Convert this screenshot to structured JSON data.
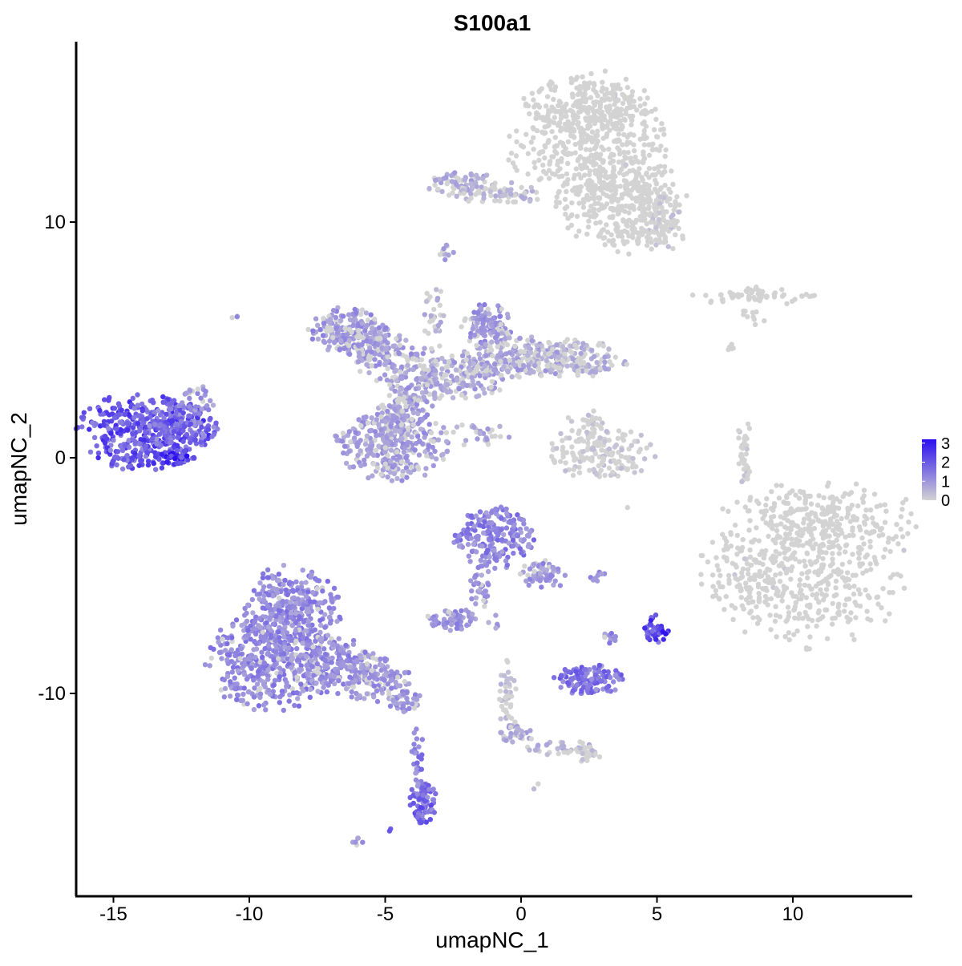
{
  "chart_data": {
    "type": "scatter",
    "title": "S100a1",
    "xlabel": "umapNC_1",
    "ylabel": "umapNC_2",
    "xlim": [
      -16.5,
      14.5
    ],
    "ylim": [
      -18.5,
      17.5
    ],
    "x_ticks": [
      -15,
      -10,
      -5,
      0,
      5,
      10
    ],
    "x_tick_labels": [
      "-15",
      "-10",
      "-5",
      "0",
      "5",
      "10"
    ],
    "y_ticks": [
      -10,
      0,
      10
    ],
    "y_tick_labels": [
      "-10",
      "0",
      "10"
    ],
    "grid": false,
    "legend_position": "right",
    "color_scale": {
      "low": "#d3d3d3",
      "high": "#2b0ff0",
      "min": 0,
      "max": 3.2,
      "labels": [
        "3",
        "2",
        "1",
        "0"
      ],
      "values": [
        3,
        2,
        1,
        0
      ]
    },
    "clusters": [
      {
        "cx": 2.4,
        "cy": 15.0,
        "rx": 1.4,
        "ry": 0.9,
        "n": 220,
        "expr": 0.05
      },
      {
        "cx": 2.6,
        "cy": 13.0,
        "rx": 1.9,
        "ry": 1.6,
        "n": 400,
        "expr": 0.05
      },
      {
        "cx": 3.2,
        "cy": 11.0,
        "rx": 1.2,
        "ry": 1.2,
        "n": 180,
        "expr": 0.05
      },
      {
        "cx": 4.5,
        "cy": 11.0,
        "rx": 1.0,
        "ry": 0.6,
        "n": 90,
        "expr": 0.1
      },
      {
        "cx": 5.2,
        "cy": 10.0,
        "rx": 0.5,
        "ry": 0.7,
        "n": 60,
        "expr": 0.3
      },
      {
        "cx": 4.3,
        "cy": 9.4,
        "rx": 1.0,
        "ry": 0.5,
        "n": 70,
        "expr": 0.1
      },
      {
        "cx": -2.2,
        "cy": 11.6,
        "rx": 0.8,
        "ry": 0.35,
        "n": 70,
        "expr": 0.7
      },
      {
        "cx": -0.8,
        "cy": 11.2,
        "rx": 1.0,
        "ry": 0.3,
        "n": 60,
        "expr": 0.5
      },
      {
        "cx": -2.8,
        "cy": 8.8,
        "rx": 0.2,
        "ry": 0.25,
        "n": 10,
        "expr": 0.8
      },
      {
        "cx": 8.5,
        "cy": 6.9,
        "rx": 1.6,
        "ry": 0.25,
        "n": 60,
        "expr": 0.1
      },
      {
        "cx": 8.5,
        "cy": 6.0,
        "rx": 0.3,
        "ry": 0.3,
        "n": 10,
        "expr": 0.1
      },
      {
        "cx": 7.7,
        "cy": 4.7,
        "rx": 0.15,
        "ry": 0.2,
        "n": 5,
        "expr": 0.1
      },
      {
        "cx": -6.5,
        "cy": 5.4,
        "rx": 0.8,
        "ry": 0.6,
        "n": 160,
        "expr": 1.0
      },
      {
        "cx": -5.6,
        "cy": 4.8,
        "rx": 0.8,
        "ry": 0.6,
        "n": 110,
        "expr": 0.9
      },
      {
        "cx": -4.5,
        "cy": 4.0,
        "rx": 0.9,
        "ry": 0.6,
        "n": 100,
        "expr": 0.9
      },
      {
        "cx": -1.2,
        "cy": 5.6,
        "rx": 0.6,
        "ry": 0.6,
        "n": 120,
        "expr": 1.0
      },
      {
        "cx": -0.2,
        "cy": 4.2,
        "rx": 1.2,
        "ry": 0.6,
        "n": 180,
        "expr": 0.8
      },
      {
        "cx": 1.8,
        "cy": 4.2,
        "rx": 1.3,
        "ry": 0.5,
        "n": 170,
        "expr": 0.6
      },
      {
        "cx": -2.0,
        "cy": 3.5,
        "rx": 1.0,
        "ry": 0.6,
        "n": 120,
        "expr": 0.8
      },
      {
        "cx": -3.6,
        "cy": 3.0,
        "rx": 0.8,
        "ry": 0.5,
        "n": 80,
        "expr": 0.8
      },
      {
        "cx": -3.2,
        "cy": 5.5,
        "rx": 0.25,
        "ry": 1.2,
        "n": 40,
        "expr": 0.6
      },
      {
        "cx": -4.7,
        "cy": 0.6,
        "rx": 1.3,
        "ry": 1.0,
        "n": 330,
        "expr": 0.9
      },
      {
        "cx": -4.3,
        "cy": 2.0,
        "rx": 0.6,
        "ry": 0.6,
        "n": 80,
        "expr": 0.9
      },
      {
        "cx": -1.6,
        "cy": 1.0,
        "rx": 0.8,
        "ry": 0.3,
        "n": 30,
        "expr": 0.7
      },
      {
        "cx": 3.0,
        "cy": 0.2,
        "rx": 1.2,
        "ry": 0.7,
        "n": 140,
        "expr": 0.3
      },
      {
        "cx": 2.4,
        "cy": 1.2,
        "rx": 0.6,
        "ry": 0.5,
        "n": 40,
        "expr": 0.3
      },
      {
        "cx": 8.2,
        "cy": 0.3,
        "rx": 0.15,
        "ry": 1.0,
        "n": 35,
        "expr": 0.3
      },
      {
        "cx": -13.9,
        "cy": 1.1,
        "rx": 1.5,
        "ry": 1.0,
        "n": 420,
        "expr": 2.0
      },
      {
        "cx": -12.5,
        "cy": 1.4,
        "rx": 0.9,
        "ry": 0.7,
        "n": 100,
        "expr": 1.6
      },
      {
        "cx": -12.7,
        "cy": 0.0,
        "rx": 0.4,
        "ry": 0.2,
        "n": 30,
        "expr": 2.8
      },
      {
        "cx": -11.9,
        "cy": 2.4,
        "rx": 0.4,
        "ry": 0.4,
        "n": 25,
        "expr": 1.0
      },
      {
        "cx": -10.6,
        "cy": 6.0,
        "rx": 0.1,
        "ry": 0.1,
        "n": 3,
        "expr": 1.0
      },
      {
        "cx": 11.0,
        "cy": -2.5,
        "rx": 2.2,
        "ry": 0.9,
        "n": 200,
        "expr": 0.1
      },
      {
        "cx": 10.4,
        "cy": -4.8,
        "rx": 2.3,
        "ry": 2.0,
        "n": 460,
        "expr": 0.15
      },
      {
        "cx": 9.0,
        "cy": -5.2,
        "rx": 0.7,
        "ry": 0.7,
        "n": 40,
        "expr": 0.1
      },
      {
        "cx": -1.0,
        "cy": -3.4,
        "rx": 0.9,
        "ry": 0.8,
        "n": 200,
        "expr": 1.3
      },
      {
        "cx": 0.8,
        "cy": -5.0,
        "rx": 0.5,
        "ry": 0.4,
        "n": 60,
        "expr": 1.0
      },
      {
        "cx": -1.5,
        "cy": -5.5,
        "rx": 0.25,
        "ry": 0.6,
        "n": 30,
        "expr": 1.0
      },
      {
        "cx": -2.5,
        "cy": -6.9,
        "rx": 0.6,
        "ry": 0.3,
        "n": 60,
        "expr": 1.1
      },
      {
        "cx": -1.0,
        "cy": -7.0,
        "rx": 0.15,
        "ry": 0.2,
        "n": 6,
        "expr": 0.8
      },
      {
        "cx": 2.7,
        "cy": -5.0,
        "rx": 0.3,
        "ry": 0.15,
        "n": 10,
        "expr": 1.0
      },
      {
        "cx": 5.0,
        "cy": -7.3,
        "rx": 0.3,
        "ry": 0.4,
        "n": 40,
        "expr": 2.3
      },
      {
        "cx": 2.5,
        "cy": -9.4,
        "rx": 0.8,
        "ry": 0.4,
        "n": 110,
        "expr": 1.5
      },
      {
        "cx": 3.2,
        "cy": -7.6,
        "rx": 0.2,
        "ry": 0.3,
        "n": 10,
        "expr": 1.2
      },
      {
        "cx": -8.4,
        "cy": -6.5,
        "rx": 1.1,
        "ry": 1.2,
        "n": 300,
        "expr": 1.2
      },
      {
        "cx": -9.2,
        "cy": -8.6,
        "rx": 1.5,
        "ry": 1.3,
        "n": 400,
        "expr": 1.2
      },
      {
        "cx": -7.0,
        "cy": -8.8,
        "rx": 1.0,
        "ry": 0.8,
        "n": 180,
        "expr": 1.1
      },
      {
        "cx": -5.5,
        "cy": -9.4,
        "rx": 0.9,
        "ry": 0.6,
        "n": 130,
        "expr": 1.0
      },
      {
        "cx": -4.3,
        "cy": -10.3,
        "rx": 0.4,
        "ry": 0.3,
        "n": 40,
        "expr": 1.0
      },
      {
        "cx": -3.6,
        "cy": -14.6,
        "rx": 0.3,
        "ry": 0.6,
        "n": 90,
        "expr": 1.7
      },
      {
        "cx": -3.8,
        "cy": -12.5,
        "rx": 0.15,
        "ry": 0.9,
        "n": 25,
        "expr": 1.3
      },
      {
        "cx": -6.0,
        "cy": -16.3,
        "rx": 0.15,
        "ry": 0.1,
        "n": 6,
        "expr": 1.0
      },
      {
        "cx": -4.8,
        "cy": -15.8,
        "rx": 0.05,
        "ry": 0.05,
        "n": 2,
        "expr": 1.5
      },
      {
        "cx": -0.5,
        "cy": -10.2,
        "rx": 0.2,
        "ry": 1.0,
        "n": 40,
        "expr": 0.4
      },
      {
        "cx": -0.1,
        "cy": -11.7,
        "rx": 0.4,
        "ry": 0.3,
        "n": 40,
        "expr": 0.8
      },
      {
        "cx": 1.4,
        "cy": -12.3,
        "rx": 0.8,
        "ry": 0.2,
        "n": 35,
        "expr": 0.6
      },
      {
        "cx": 2.4,
        "cy": -12.6,
        "rx": 0.4,
        "ry": 0.2,
        "n": 25,
        "expr": 0.4
      },
      {
        "cx": 0.6,
        "cy": -14.0,
        "rx": 0.1,
        "ry": 0.1,
        "n": 3,
        "expr": 0.5
      },
      {
        "cx": 4.0,
        "cy": -2.1,
        "rx": 0.05,
        "ry": 0.05,
        "n": 1,
        "expr": 0.0
      }
    ]
  }
}
